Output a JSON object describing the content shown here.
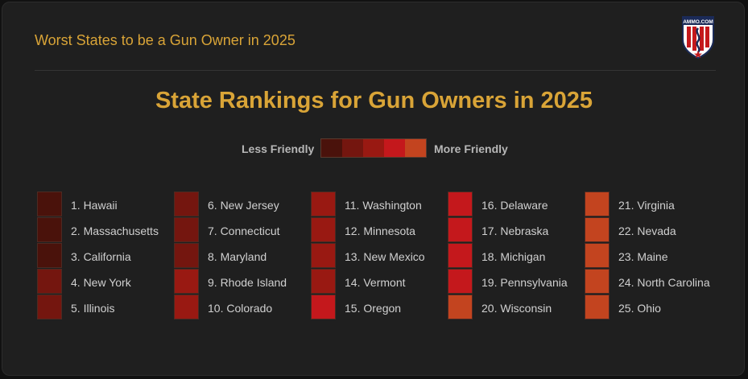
{
  "header": {
    "title": "Worst States to be a Gun Owner in 2025"
  },
  "logo": {
    "text": "AMMO.COM",
    "icon": "shield-logo-icon"
  },
  "chart_data": {
    "type": "table",
    "title": "State Rankings for Gun Owners in 2025",
    "legend": {
      "low_label": "Less Friendly",
      "high_label": "More Friendly",
      "colors": [
        "#4a120b",
        "#74160f",
        "#991912",
        "#c4181c",
        "#c3441f"
      ]
    },
    "rankings": [
      {
        "rank": 1,
        "state": "Hawaii",
        "label": "1. Hawaii",
        "level": 1
      },
      {
        "rank": 2,
        "state": "Massachusetts",
        "label": "2. Massachusetts",
        "level": 1
      },
      {
        "rank": 3,
        "state": "California",
        "label": "3. California",
        "level": 1
      },
      {
        "rank": 4,
        "state": "New York",
        "label": "4. New York",
        "level": 2
      },
      {
        "rank": 5,
        "state": "Illinois",
        "label": "5. Illinois",
        "level": 2
      },
      {
        "rank": 6,
        "state": "New Jersey",
        "label": "6. New Jersey",
        "level": 2
      },
      {
        "rank": 7,
        "state": "Connecticut",
        "label": "7. Connecticut",
        "level": 2
      },
      {
        "rank": 8,
        "state": "Maryland",
        "label": "8. Maryland",
        "level": 2
      },
      {
        "rank": 9,
        "state": "Rhode Island",
        "label": "9. Rhode Island",
        "level": 3
      },
      {
        "rank": 10,
        "state": "Colorado",
        "label": "10. Colorado",
        "level": 3
      },
      {
        "rank": 11,
        "state": "Washington",
        "label": "11. Washington",
        "level": 3
      },
      {
        "rank": 12,
        "state": "Minnesota",
        "label": "12. Minnesota",
        "level": 3
      },
      {
        "rank": 13,
        "state": "New Mexico",
        "label": "13. New Mexico",
        "level": 3
      },
      {
        "rank": 14,
        "state": "Vermont",
        "label": "14. Vermont",
        "level": 3
      },
      {
        "rank": 15,
        "state": "Oregon",
        "label": "15. Oregon",
        "level": 4
      },
      {
        "rank": 16,
        "state": "Delaware",
        "label": "16. Delaware",
        "level": 4
      },
      {
        "rank": 17,
        "state": "Nebraska",
        "label": "17. Nebraska",
        "level": 4
      },
      {
        "rank": 18,
        "state": "Michigan",
        "label": "18. Michigan",
        "level": 4
      },
      {
        "rank": 19,
        "state": "Pennsylvania",
        "label": "19. Pennsylvania",
        "level": 4
      },
      {
        "rank": 20,
        "state": "Wisconsin",
        "label": "20. Wisconsin",
        "level": 5
      },
      {
        "rank": 21,
        "state": "Virginia",
        "label": "21. Virginia",
        "level": 5
      },
      {
        "rank": 22,
        "state": "Nevada",
        "label": "22. Nevada",
        "level": 5
      },
      {
        "rank": 23,
        "state": "Maine",
        "label": "23. Maine",
        "level": 5
      },
      {
        "rank": 24,
        "state": "North Carolina",
        "label": "24. North Carolina",
        "level": 5
      },
      {
        "rank": 25,
        "state": "Ohio",
        "label": "25. Ohio",
        "level": 5
      }
    ]
  }
}
